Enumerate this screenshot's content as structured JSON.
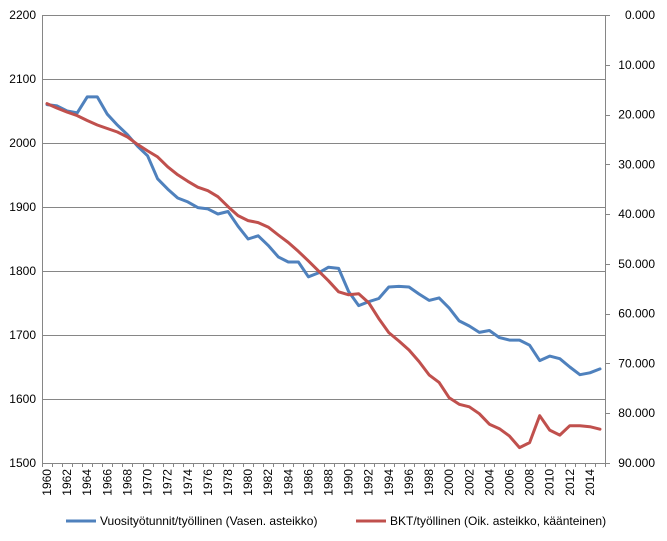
{
  "chart_data": {
    "type": "line",
    "title": "",
    "x": [
      1960,
      1961,
      1962,
      1963,
      1964,
      1965,
      1966,
      1967,
      1968,
      1969,
      1970,
      1971,
      1972,
      1973,
      1974,
      1975,
      1976,
      1977,
      1978,
      1979,
      1980,
      1981,
      1982,
      1983,
      1984,
      1985,
      1986,
      1987,
      1988,
      1989,
      1990,
      1991,
      1992,
      1993,
      1994,
      1995,
      1996,
      1997,
      1998,
      1999,
      2000,
      2001,
      2002,
      2003,
      2004,
      2005,
      2006,
      2007,
      2008,
      2009,
      2010,
      2011,
      2012,
      2013,
      2014,
      2015
    ],
    "x_tick_labels": [
      "1960",
      "1962",
      "1964",
      "1966",
      "1968",
      "1970",
      "1972",
      "1974",
      "1976",
      "1978",
      "1980",
      "1982",
      "1984",
      "1986",
      "1988",
      "1990",
      "1992",
      "1994",
      "1996",
      "1998",
      "2000",
      "2002",
      "2004",
      "2006",
      "2008",
      "2010",
      "2012",
      "2014"
    ],
    "left_axis": {
      "ylim": [
        1500,
        2200
      ],
      "tick_labels": [
        "1500",
        "1600",
        "1700",
        "1800",
        "1900",
        "2000",
        "2100",
        "2200"
      ]
    },
    "right_axis": {
      "ylim": [
        0,
        90000
      ],
      "inverted": true,
      "tick_labels": [
        "0.000",
        "10.000",
        "20.000",
        "30.000",
        "40.000",
        "50.000",
        "60.000",
        "70.000",
        "80.000",
        "90.000"
      ]
    },
    "grid": true,
    "legend_position": "bottom",
    "series": [
      {
        "name": "Vuosityötunnit/työllinen (Vasen. asteikko)",
        "axis": "left",
        "color": "#4F81BD",
        "values": [
          2060,
          2058,
          2050,
          2047,
          2072,
          2072,
          2045,
          2028,
          2013,
          1995,
          1980,
          1944,
          1928,
          1914,
          1908,
          1899,
          1897,
          1889,
          1893,
          1870,
          1850,
          1855,
          1840,
          1822,
          1814,
          1814,
          1791,
          1797,
          1806,
          1804,
          1768,
          1746,
          1752,
          1757,
          1775,
          1776,
          1775,
          1764,
          1754,
          1758,
          1742,
          1722,
          1714,
          1704,
          1707,
          1696,
          1692,
          1692,
          1684,
          1660,
          1667,
          1663,
          1650,
          1638,
          1641,
          1647
        ]
      },
      {
        "name": "BKT/työllinen (Oik. asteikko, käänteinen)",
        "axis": "right",
        "color": "#C0504D",
        "values": [
          17800,
          18700,
          19500,
          20200,
          21200,
          22100,
          22800,
          23500,
          24500,
          26000,
          27300,
          28500,
          30500,
          32100,
          33400,
          34600,
          35300,
          36500,
          38500,
          40300,
          41300,
          41700,
          42600,
          44200,
          45700,
          47500,
          49400,
          51400,
          53400,
          55600,
          56200,
          56000,
          57800,
          61000,
          63800,
          65500,
          67300,
          69600,
          72300,
          73800,
          76900,
          78200,
          78700,
          80100,
          82200,
          83100,
          84600,
          86900,
          85900,
          80500,
          83400,
          84400,
          82500,
          82500,
          82700,
          83200
        ]
      }
    ]
  }
}
